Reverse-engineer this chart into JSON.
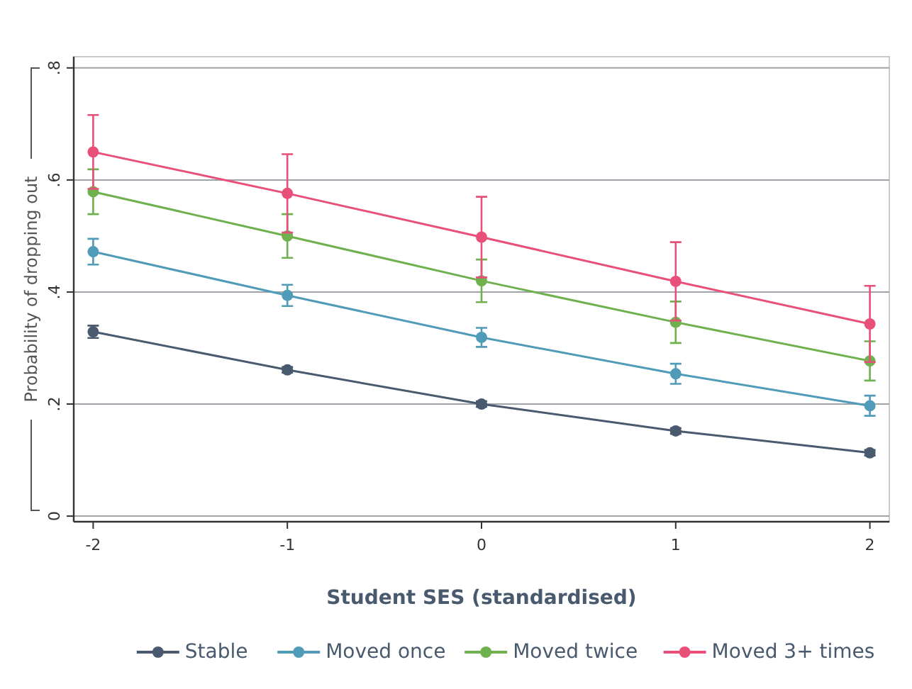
{
  "chart_data": {
    "type": "line",
    "xlabel": "Student SES (standardised)",
    "ylabel": "Probability of dropping out",
    "x": [
      -2,
      -1,
      0,
      1,
      2
    ],
    "xlim": [
      -2.1,
      2.1
    ],
    "xticks": [
      -2,
      -1,
      0,
      1,
      2
    ],
    "ylim": [
      -0.01,
      0.82
    ],
    "yticks": [
      {
        "value": 0,
        "label": "0"
      },
      {
        "value": 0.2,
        "label": ".2"
      },
      {
        "value": 0.4,
        "label": ".4"
      },
      {
        "value": 0.6,
        "label": ".6"
      },
      {
        "value": 0.8,
        "label": ".8"
      }
    ],
    "grid": "y",
    "legend": "bottom",
    "marker": "circle",
    "line_style": "solid",
    "series": [
      {
        "name": "Stable",
        "color": "#4a5a6e",
        "values": [
          0.329,
          0.261,
          0.2,
          0.152,
          0.113
        ],
        "errors": [
          0.011,
          0.005,
          0.005,
          0.005,
          0.005
        ]
      },
      {
        "name": "Moved once",
        "color": "#4f9bb8",
        "values": [
          0.472,
          0.394,
          0.319,
          0.254,
          0.197
        ],
        "errors": [
          0.023,
          0.019,
          0.017,
          0.018,
          0.018
        ]
      },
      {
        "name": "Moved twice",
        "color": "#6fb04f",
        "values": [
          0.579,
          0.5,
          0.42,
          0.346,
          0.277
        ],
        "errors": [
          0.04,
          0.039,
          0.038,
          0.037,
          0.035
        ]
      },
      {
        "name": "Moved 3+ times",
        "color": "#e8507a",
        "values": [
          0.65,
          0.576,
          0.498,
          0.419,
          0.343
        ],
        "errors": [
          0.066,
          0.07,
          0.072,
          0.07,
          0.068
        ]
      }
    ]
  }
}
